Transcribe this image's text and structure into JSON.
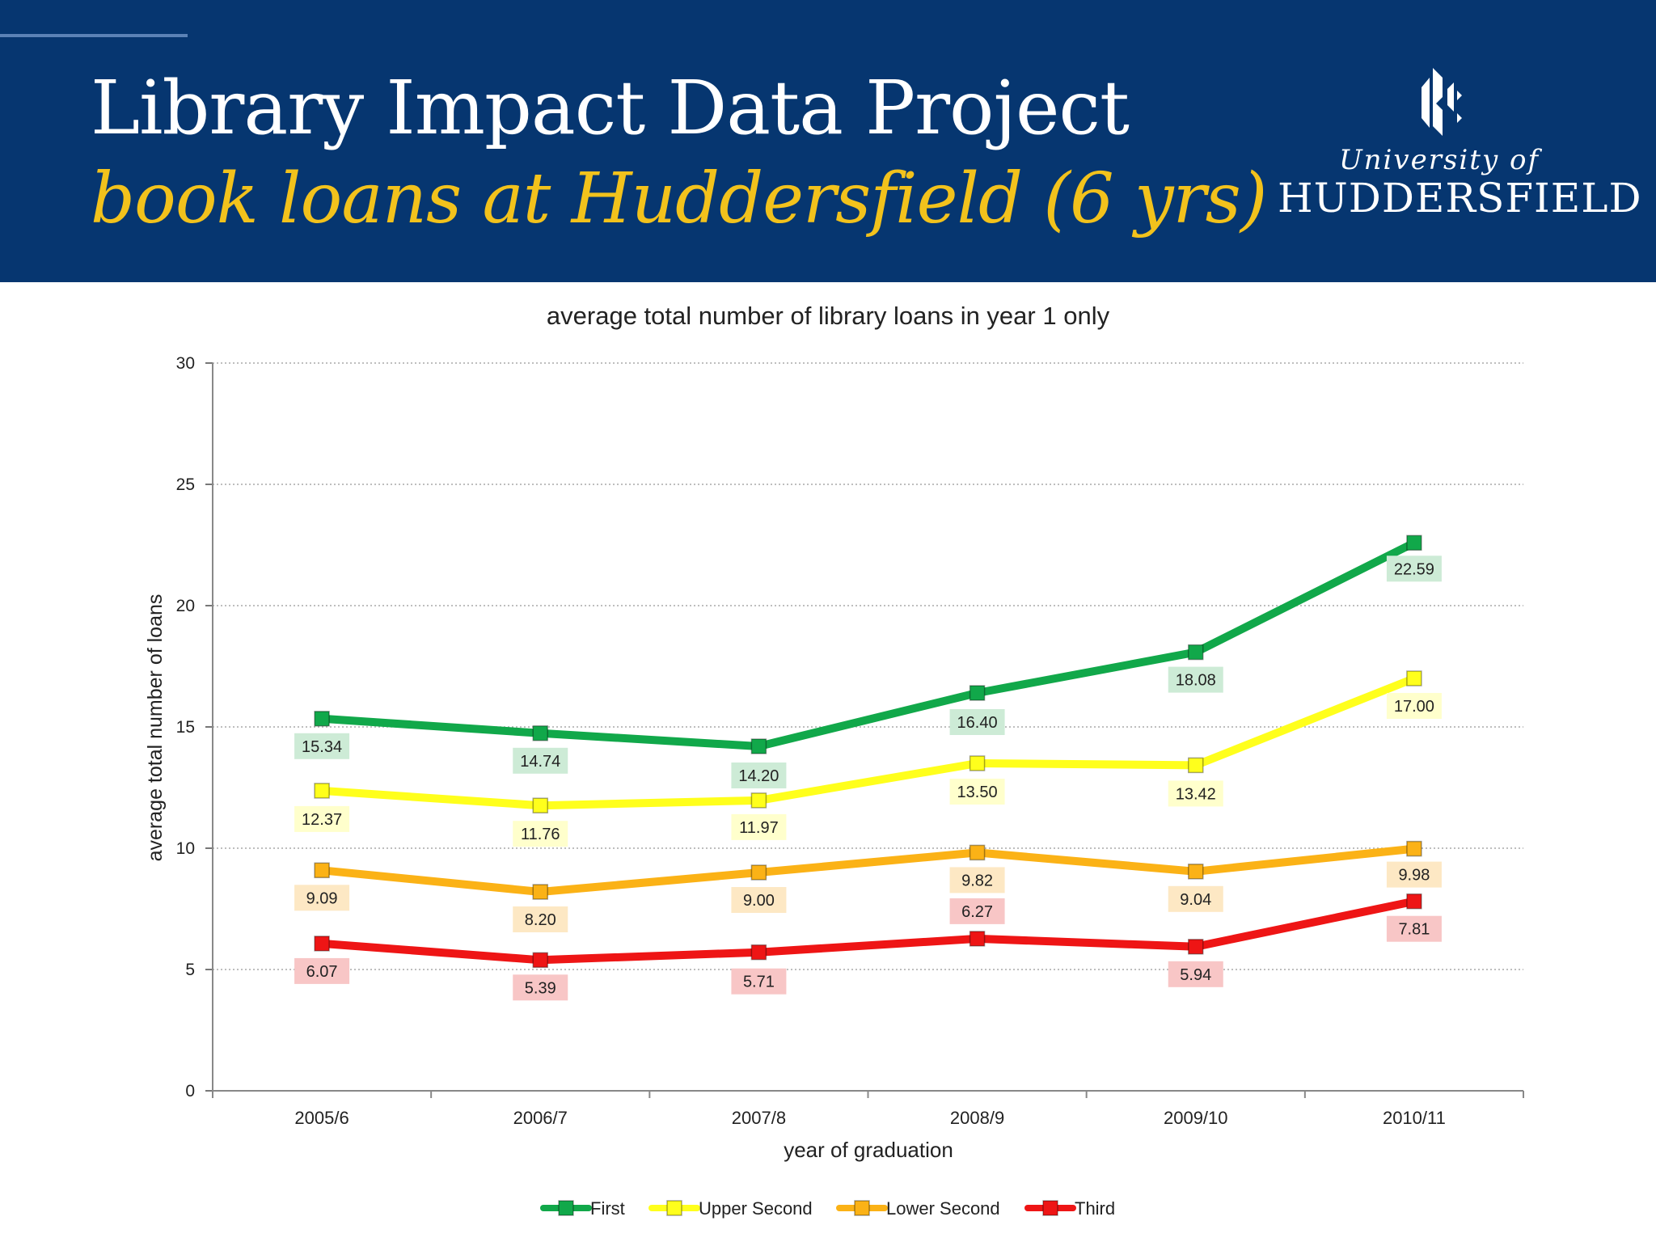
{
  "header": {
    "title": "Library Impact Data Project",
    "subtitle": "book loans at Huddersfield (6 yrs)",
    "logo_line1": "University of",
    "logo_line2": "HUDDERSFIELD"
  },
  "colors": {
    "header_bg": "#063670",
    "subtitle": "#f2c21c",
    "first": "#11a84a",
    "upper_second": "#ffff1c",
    "lower_second": "#fbb216",
    "third": "#ee1515"
  },
  "chart_data": {
    "type": "line",
    "title": "average total number of library loans in year 1 only",
    "xlabel": "year of graduation",
    "ylabel": "average total number of loans",
    "ylim": [
      0,
      30
    ],
    "yticks": [
      0,
      5,
      10,
      15,
      20,
      25,
      30
    ],
    "grid": true,
    "legend_position": "bottom",
    "categories": [
      "2005/6",
      "2006/7",
      "2007/8",
      "2008/9",
      "2009/10",
      "2010/11"
    ],
    "series": [
      {
        "name": "First",
        "color": "#11a84a",
        "label_bg": "#cdebd6",
        "values": [
          15.34,
          14.74,
          14.2,
          16.4,
          18.08,
          22.59
        ],
        "labels": [
          "15.34",
          "14.74",
          "14.20",
          "16.40",
          "18.08",
          "22.59"
        ]
      },
      {
        "name": "Upper Second",
        "color": "#ffff1c",
        "label_bg": "#ffffcc",
        "values": [
          12.37,
          11.76,
          11.97,
          13.5,
          13.42,
          17.0
        ],
        "labels": [
          "12.37",
          "11.76",
          "11.97",
          "13.50",
          "13.42",
          "17.00"
        ]
      },
      {
        "name": "Lower Second",
        "color": "#fbb216",
        "label_bg": "#fde8c4",
        "values": [
          9.09,
          8.2,
          9.0,
          9.82,
          9.04,
          9.98
        ],
        "labels": [
          "9.09",
          "8.20",
          "9.00",
          "9.82",
          "9.04",
          "9.98"
        ]
      },
      {
        "name": "Third",
        "color": "#ee1515",
        "label_bg": "#f8c6c6",
        "values": [
          6.07,
          5.39,
          5.71,
          6.27,
          5.94,
          7.81
        ],
        "labels": [
          "6.07",
          "5.39",
          "5.71",
          "6.27",
          "5.94",
          "7.81"
        ]
      }
    ]
  }
}
